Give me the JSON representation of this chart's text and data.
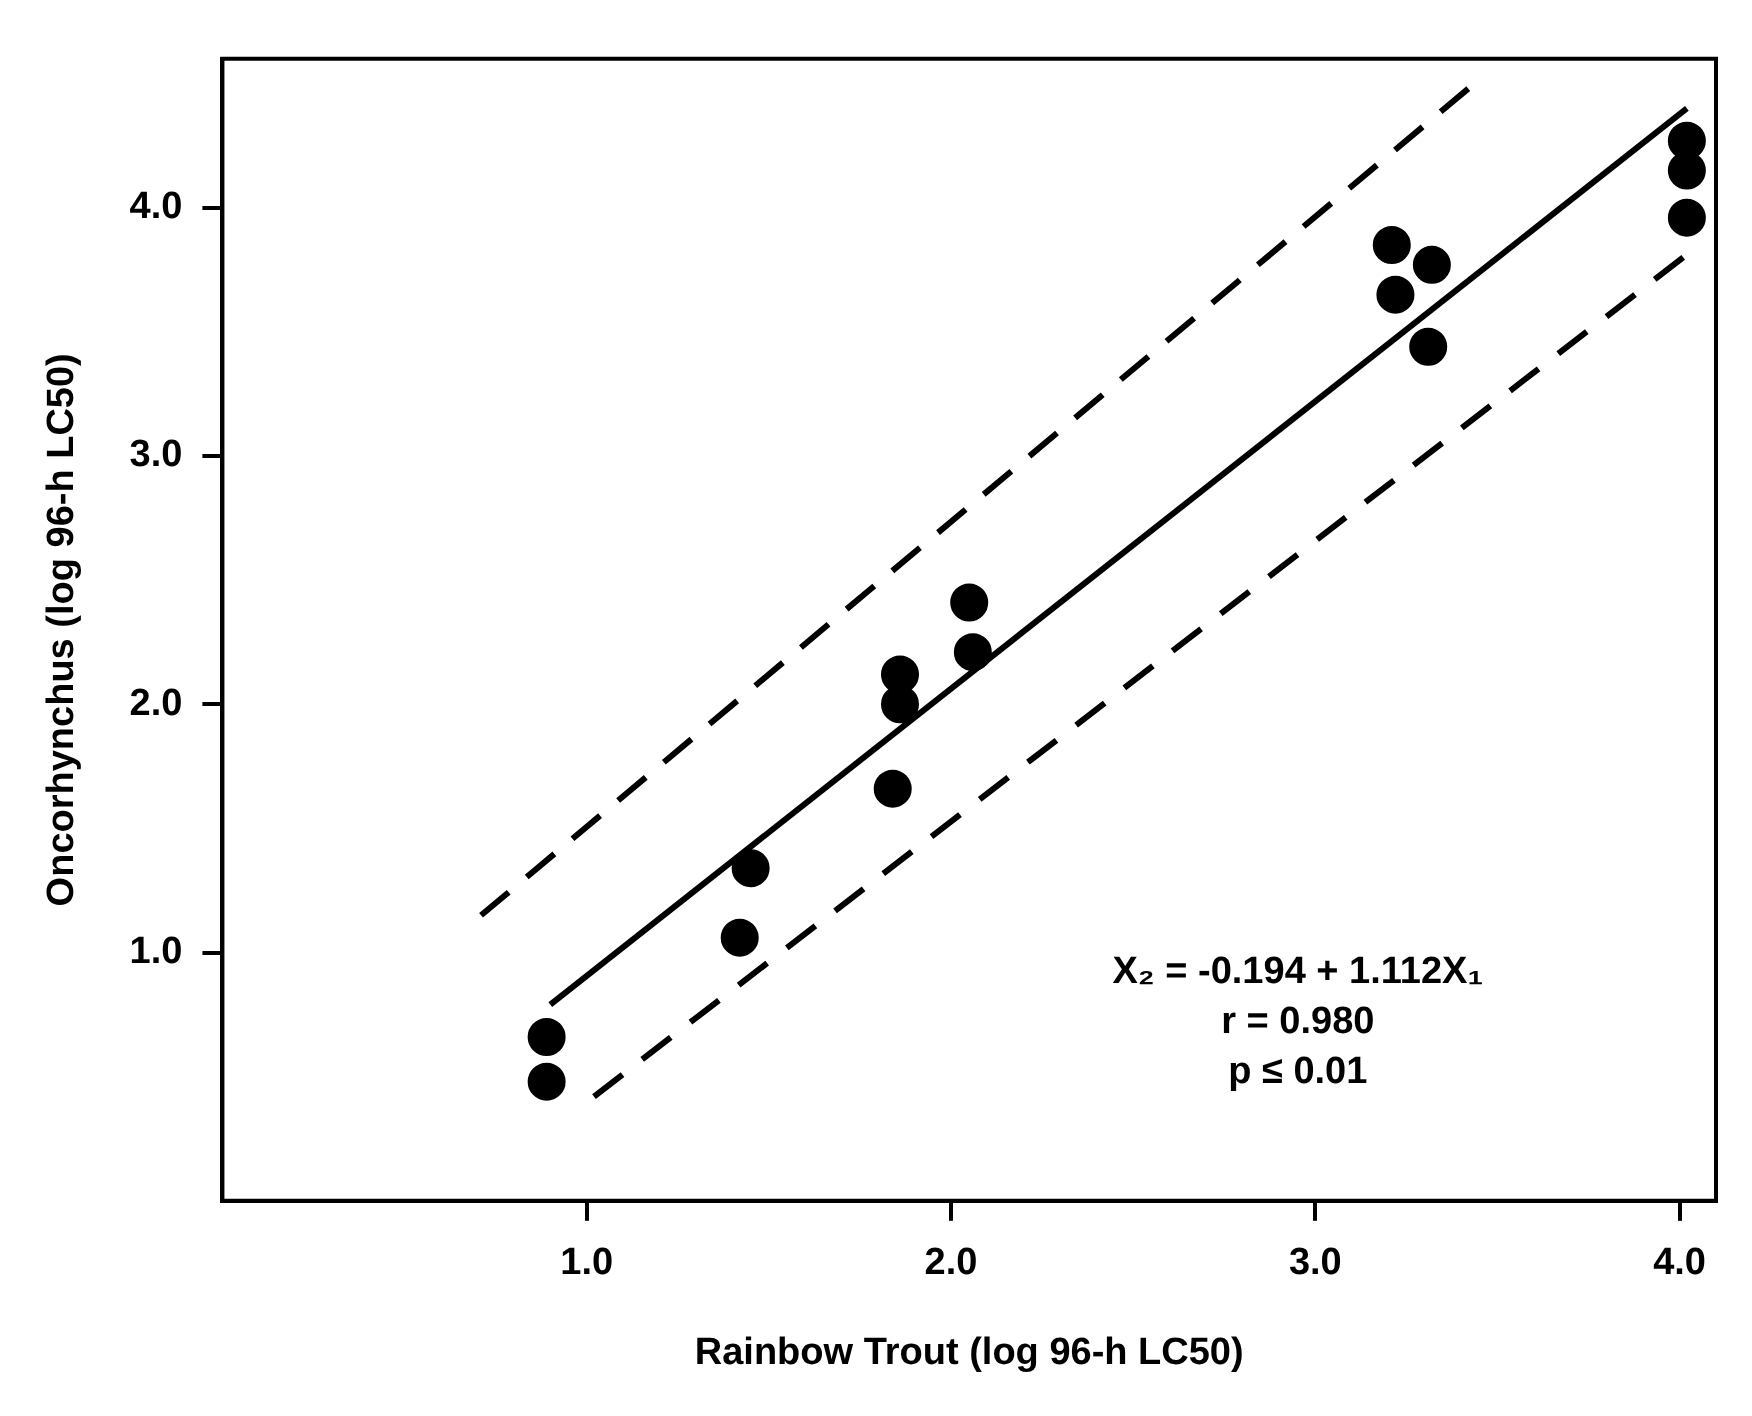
{
  "chart_data": {
    "type": "scatter",
    "xlabel": "Rainbow Trout (log 96-h LC50)",
    "ylabel": "Oncorhynchus (log 96-h LC50)",
    "xlim": [
      0,
      4.1
    ],
    "ylim": [
      0,
      4.6
    ],
    "xticks": [
      {
        "value": 1,
        "label": "1.0"
      },
      {
        "value": 2,
        "label": "2.0"
      },
      {
        "value": 3,
        "label": "3.0"
      },
      {
        "value": 4,
        "label": "4.0"
      }
    ],
    "yticks": [
      {
        "value": 1,
        "label": "1.0"
      },
      {
        "value": 2,
        "label": "2.0"
      },
      {
        "value": 3,
        "label": "3.0"
      },
      {
        "value": 4,
        "label": "4.0"
      }
    ],
    "grid": false,
    "legend": false,
    "series": [
      {
        "color": "#000000",
        "marker": "circle",
        "x": [
          0.89,
          0.89,
          1.42,
          1.45,
          1.84,
          1.86,
          1.86,
          2.05,
          2.06,
          3.21,
          3.22,
          3.31,
          3.32,
          4.02,
          4.02,
          4.02
        ],
        "values": [
          0.66,
          0.48,
          1.06,
          1.34,
          1.66,
          2.0,
          2.12,
          2.41,
          2.21,
          3.85,
          3.65,
          3.44,
          3.77,
          4.27,
          4.15,
          3.96
        ]
      },
      {
        "type": "line",
        "color": "#000000",
        "marker": "none",
        "line_style": "solid",
        "x": [
          0.9,
          4.02
        ],
        "values": [
          0.79,
          4.4
        ]
      },
      {
        "type": "line",
        "color": "#000000",
        "marker": "none",
        "line_style": "dashed",
        "x": [
          0.71,
          3.42
        ],
        "values": [
          1.15,
          4.48
        ]
      },
      {
        "type": "line",
        "color": "#000000",
        "marker": "none",
        "line_style": "dashed",
        "x": [
          1.02,
          4.01
        ],
        "values": [
          0.42,
          3.8
        ]
      }
    ],
    "annotations": [
      "X₂ = -0.194 + 1.112X₁",
      "r = 0.980",
      "p ≤ 0.01"
    ]
  }
}
